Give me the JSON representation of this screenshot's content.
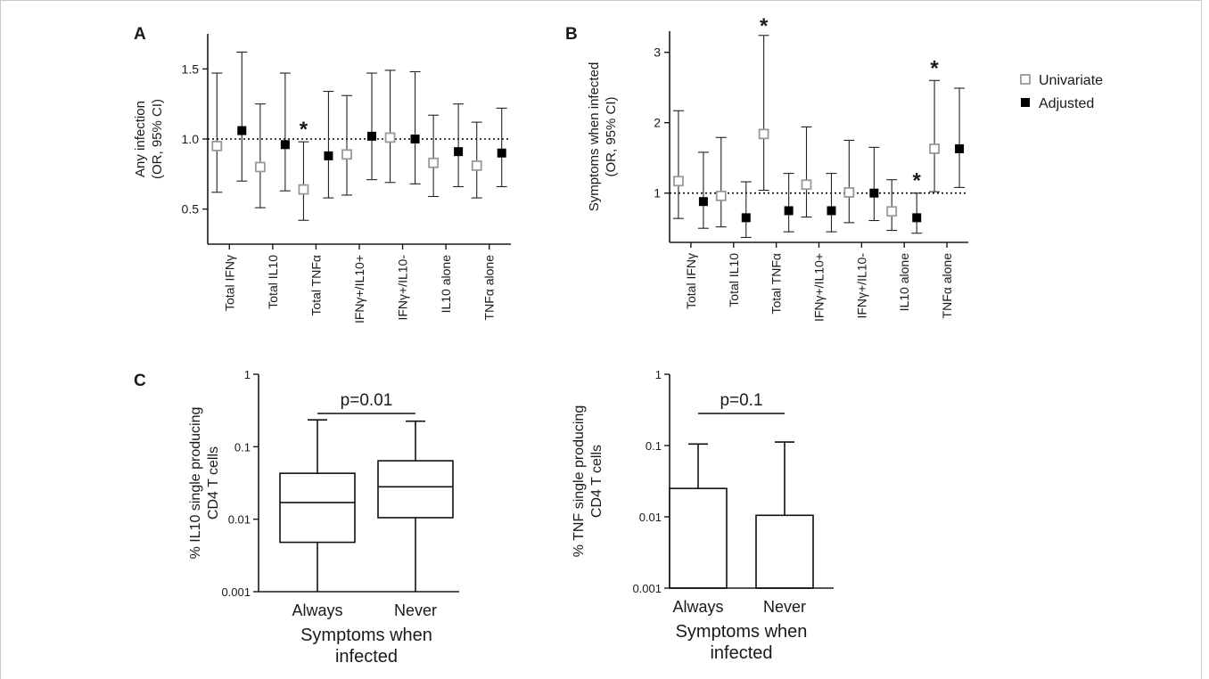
{
  "chart_data": [
    {
      "panel": "A",
      "type": "scatter",
      "ylabel": [
        "Any infection",
        "(OR, 95% CI)"
      ],
      "yticks": [
        "0.5",
        "1.0",
        "1.5"
      ],
      "ylim": [
        0.25,
        1.75
      ],
      "reference_line": 1.0,
      "categories": [
        "Total IFNγ",
        "Total IL10",
        "Total TNFα",
        "IFNγ+/IL10+",
        "IFNγ+/IL10-",
        "IL10 alone",
        "TNFα alone"
      ],
      "series": [
        {
          "name": "Univariate",
          "values": [
            0.95,
            0.8,
            0.64,
            0.89,
            1.01,
            0.83,
            0.81
          ],
          "lower": [
            0.62,
            0.51,
            0.42,
            0.6,
            0.69,
            0.59,
            0.58
          ],
          "upper": [
            1.47,
            1.25,
            0.98,
            1.31,
            1.49,
            1.17,
            1.12
          ]
        },
        {
          "name": "Adjusted",
          "values": [
            1.06,
            0.96,
            0.88,
            1.02,
            1.0,
            0.91,
            0.9
          ],
          "lower": [
            0.7,
            0.63,
            0.58,
            0.71,
            0.68,
            0.66,
            0.66
          ],
          "upper": [
            1.62,
            1.47,
            1.34,
            1.47,
            1.48,
            1.25,
            1.22
          ]
        }
      ],
      "annotations": [
        {
          "text": "*",
          "category": 2,
          "series": "Univariate"
        }
      ]
    },
    {
      "panel": "B",
      "type": "scatter",
      "ylabel": [
        "Symptoms when infected",
        "(OR, 95% CI)"
      ],
      "yticks": [
        "1",
        "2",
        "3"
      ],
      "ylim": [
        0.3,
        3.3
      ],
      "reference_line": 1.0,
      "categories": [
        "Total IFNγ",
        "Total IL10",
        "Total TNFα",
        "IFNγ+/IL10+",
        "IFNγ+/IL10-",
        "IL10 alone",
        "TNFα alone"
      ],
      "series": [
        {
          "name": "Univariate",
          "values": [
            1.17,
            0.96,
            1.84,
            1.12,
            1.01,
            0.74,
            1.63
          ],
          "lower": [
            0.64,
            0.52,
            1.04,
            0.66,
            0.58,
            0.47,
            1.02
          ],
          "upper": [
            2.17,
            1.79,
            3.24,
            1.94,
            1.75,
            1.19,
            2.6
          ]
        },
        {
          "name": "Adjusted",
          "values": [
            0.88,
            0.65,
            0.75,
            0.75,
            1.0,
            0.65,
            1.63
          ],
          "lower": [
            0.5,
            0.37,
            0.45,
            0.45,
            0.61,
            0.43,
            1.08
          ],
          "upper": [
            1.58,
            1.16,
            1.28,
            1.28,
            1.65,
            1.0,
            2.49
          ]
        }
      ],
      "annotations": [
        {
          "text": "*",
          "category": 2,
          "series": "Univariate"
        },
        {
          "text": "*",
          "category": 5,
          "series": "Adjusted"
        },
        {
          "text": "*",
          "category": 6,
          "series": "Univariate"
        }
      ]
    },
    {
      "panel": "C",
      "type": "box",
      "yscale": "log",
      "ylim": [
        0.001,
        1
      ],
      "yticks": [
        "0.001",
        "0.01",
        "0.1",
        "1"
      ],
      "ylabel": [
        "% IL10 single producing",
        "CD4 T cells"
      ],
      "xlabel": [
        "Symptoms when",
        "infected"
      ],
      "categories": [
        "Always",
        "Never"
      ],
      "boxes": [
        {
          "min": 0.001,
          "q1": 0.0048,
          "median": 0.017,
          "q3": 0.043,
          "max": 0.235
        },
        {
          "min": 0.001,
          "q1": 0.0105,
          "median": 0.028,
          "q3": 0.064,
          "max": 0.225
        }
      ],
      "pvalue": "p=0.01"
    },
    {
      "panel": "",
      "type": "box",
      "yscale": "log",
      "ylim": [
        0.001,
        1
      ],
      "yticks": [
        "0.001",
        "0.01",
        "0.1",
        "1"
      ],
      "ylabel": [
        "% TNF single producing",
        "CD4 T cells"
      ],
      "xlabel": [
        "Symptoms when",
        "infected"
      ],
      "categories": [
        "Always",
        "Never"
      ],
      "boxes": [
        {
          "min": 0.001,
          "q1": 0.001,
          "median": 0.001,
          "q3": 0.025,
          "max": 0.105
        },
        {
          "min": 0.001,
          "q1": 0.001,
          "median": 0.001,
          "q3": 0.0105,
          "max": 0.112
        }
      ],
      "pvalue": "p=0.1"
    }
  ],
  "legend": [
    {
      "label": "Univariate",
      "marker": "open-square",
      "color": "#999999"
    },
    {
      "label": "Adjusted",
      "marker": "filled-square",
      "color": "#000000"
    }
  ],
  "colors": {
    "univariate": "#999999",
    "adjusted": "#000000",
    "axis": "#1a1a1a",
    "frame": "#c8c8c8"
  }
}
